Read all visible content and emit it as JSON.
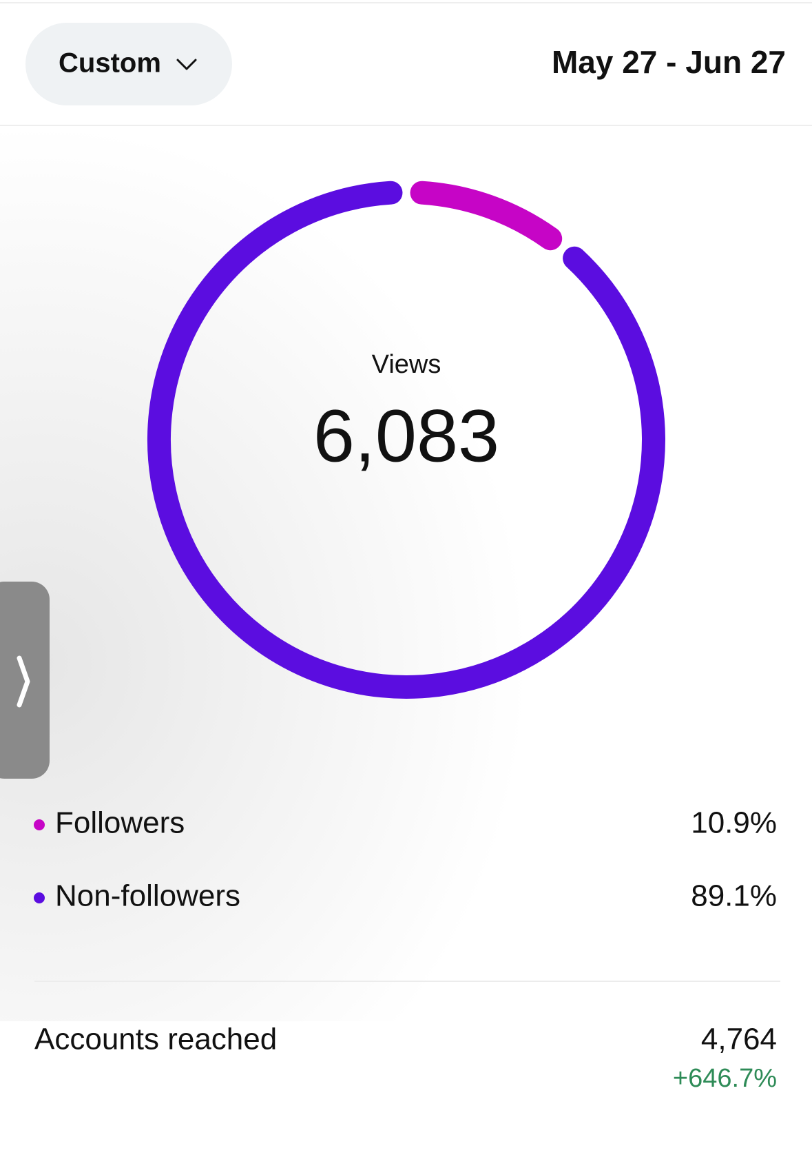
{
  "header": {
    "filter": "Custom",
    "date_range": "May 27 - Jun 27"
  },
  "chart_data": {
    "type": "donut",
    "title": "Views",
    "total": "6,083",
    "categories": [
      "Followers",
      "Non-followers"
    ],
    "values": [
      10.9,
      89.1
    ],
    "value_labels": [
      "10.9%",
      "89.1%"
    ],
    "colors": [
      "#c605c6",
      "#5b0de0"
    ]
  },
  "metrics": [
    {
      "label": "Accounts reached",
      "value": "4,764",
      "change": "+646.7%"
    }
  ]
}
